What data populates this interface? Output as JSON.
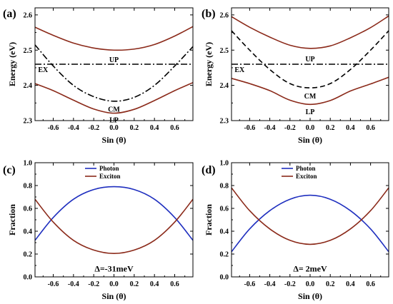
{
  "chart_data": [
    {
      "panel": "(a)",
      "type": "line",
      "xlabel": "Sin (θ)",
      "ylabel": "Energy (eV)",
      "xlim": [
        -0.78,
        0.78
      ],
      "ylim": [
        2.3,
        2.62
      ],
      "xticks": [
        -0.6,
        -0.4,
        -0.2,
        0.0,
        0.2,
        0.4,
        0.6
      ],
      "xtick_labels": [
        "-0.6",
        "-0.4",
        "-0.2",
        "0.0",
        "0.2",
        "0.4",
        "0.6"
      ],
      "yticks": [
        2.3,
        2.4,
        2.5,
        2.6
      ],
      "ytick_labels": [
        "2.3",
        "2.4",
        "2.5",
        "2.6"
      ],
      "series": [
        {
          "label": "UP",
          "color": "#8b2a1a",
          "style": "solid",
          "x": [
            -0.78,
            -0.6,
            -0.4,
            -0.2,
            0.0,
            0.2,
            0.4,
            0.6,
            0.78
          ],
          "y": [
            2.565,
            2.542,
            2.52,
            2.506,
            2.5,
            2.503,
            2.516,
            2.54,
            2.567
          ]
        },
        {
          "label": "CM",
          "color": "#000000",
          "style": "dashdot",
          "x": [
            -0.78,
            -0.6,
            -0.4,
            -0.2,
            0.0,
            0.2,
            0.4,
            0.6,
            0.78
          ],
          "y": [
            2.515,
            2.455,
            2.4,
            2.368,
            2.355,
            2.366,
            2.4,
            2.455,
            2.51
          ]
        },
        {
          "label": "EX",
          "color": "#000000",
          "style": "dashdot",
          "x": [
            -0.78,
            0.78
          ],
          "y": [
            2.46,
            2.46
          ]
        },
        {
          "label": "LP",
          "color": "#8b2a1a",
          "style": "solid",
          "x": [
            -0.78,
            -0.6,
            -0.4,
            -0.2,
            0.0,
            0.2,
            0.4,
            0.6,
            0.78
          ],
          "y": [
            2.405,
            2.385,
            2.358,
            2.333,
            2.321,
            2.332,
            2.357,
            2.385,
            2.408
          ]
        }
      ],
      "annotations": [
        {
          "text": "UP",
          "x": 0.0,
          "y": 2.473
        },
        {
          "text": "EX",
          "x": -0.7,
          "y": 2.445
        },
        {
          "text": "CM",
          "x": 0.0,
          "y": 2.332
        },
        {
          "text": "LP",
          "x": 0.0,
          "y": 2.302
        }
      ]
    },
    {
      "panel": "(b)",
      "type": "line",
      "xlabel": "Sin (θ)",
      "ylabel": "Energy (eV)",
      "xlim": [
        -0.78,
        0.78
      ],
      "ylim": [
        2.3,
        2.62
      ],
      "xticks": [
        -0.6,
        -0.4,
        -0.2,
        0.0,
        0.2,
        0.4,
        0.6
      ],
      "xtick_labels": [
        "-0.6",
        "-0.4",
        "-0.2",
        "0.0",
        "0.2",
        "0.4",
        "0.6"
      ],
      "yticks": [
        2.3,
        2.4,
        2.5,
        2.6
      ],
      "ytick_labels": [
        "2.3",
        "2.4",
        "2.5",
        "2.6"
      ],
      "series": [
        {
          "label": "UP",
          "color": "#8b2a1a",
          "style": "solid",
          "x": [
            -0.78,
            -0.6,
            -0.4,
            -0.2,
            0.0,
            0.2,
            0.4,
            0.6,
            0.78
          ],
          "y": [
            2.595,
            2.565,
            2.537,
            2.514,
            2.505,
            2.512,
            2.535,
            2.564,
            2.597
          ]
        },
        {
          "label": "CM",
          "color": "#000000",
          "style": "dashed",
          "x": [
            -0.78,
            -0.6,
            -0.4,
            -0.2,
            0.0,
            0.2,
            0.4,
            0.6,
            0.78
          ],
          "y": [
            2.555,
            2.5,
            2.445,
            2.405,
            2.393,
            2.405,
            2.445,
            2.5,
            2.555
          ]
        },
        {
          "label": "EX",
          "color": "#000000",
          "style": "dashdot",
          "x": [
            -0.78,
            0.78
          ],
          "y": [
            2.46,
            2.46
          ]
        },
        {
          "label": "LP",
          "color": "#8b2a1a",
          "style": "solid",
          "x": [
            -0.78,
            -0.6,
            -0.4,
            -0.2,
            0.0,
            0.2,
            0.4,
            0.6,
            0.78
          ],
          "y": [
            2.42,
            2.405,
            2.385,
            2.358,
            2.346,
            2.357,
            2.384,
            2.404,
            2.423
          ]
        }
      ],
      "annotations": [
        {
          "text": "UP",
          "x": 0.0,
          "y": 2.475
        },
        {
          "text": "EX",
          "x": -0.7,
          "y": 2.445
        },
        {
          "text": "CM",
          "x": 0.0,
          "y": 2.37
        },
        {
          "text": "LP",
          "x": 0.0,
          "y": 2.325
        }
      ]
    },
    {
      "panel": "(c)",
      "type": "line",
      "xlabel": "Sin (θ)",
      "ylabel": "Fraction",
      "xlim": [
        -0.78,
        0.78
      ],
      "ylim": [
        0.0,
        1.0
      ],
      "xticks": [
        -0.6,
        -0.4,
        -0.2,
        0.0,
        0.2,
        0.4,
        0.6
      ],
      "xtick_labels": [
        "-0.6",
        "-0.4",
        "-0.2",
        "0.0",
        "0.2",
        "0.4",
        "0.6"
      ],
      "yticks": [
        0.0,
        0.2,
        0.4,
        0.6,
        0.8,
        1.0
      ],
      "ytick_labels": [
        "0.0",
        "0.2",
        "0.4",
        "0.6",
        "0.8",
        "1.0"
      ],
      "legend": {
        "position": "top-left",
        "entries": [
          "Photon",
          "Exciton"
        ]
      },
      "series": [
        {
          "name": "Photon",
          "color": "#1f2fbf",
          "style": "solid",
          "x": [
            -0.78,
            -0.6,
            -0.4,
            -0.2,
            0.0,
            0.2,
            0.4,
            0.6,
            0.78
          ],
          "y": [
            0.32,
            0.52,
            0.68,
            0.765,
            0.79,
            0.765,
            0.68,
            0.52,
            0.32
          ]
        },
        {
          "name": "Exciton",
          "color": "#8b2a1a",
          "style": "solid",
          "x": [
            -0.78,
            -0.6,
            -0.4,
            -0.2,
            0.0,
            0.2,
            0.4,
            0.6,
            0.78
          ],
          "y": [
            0.68,
            0.48,
            0.32,
            0.235,
            0.205,
            0.235,
            0.32,
            0.48,
            0.68
          ]
        }
      ],
      "annotations": [
        {
          "text": "Δ=-31meV",
          "x": 0.0,
          "y": 0.07
        }
      ]
    },
    {
      "panel": "(d)",
      "type": "line",
      "xlabel": "Sin (θ)",
      "ylabel": "Fraction",
      "xlim": [
        -0.78,
        0.78
      ],
      "ylim": [
        0.0,
        1.0
      ],
      "xticks": [
        -0.6,
        -0.4,
        -0.2,
        0.0,
        0.2,
        0.4,
        0.6
      ],
      "xtick_labels": [
        "-0.6",
        "-0.4",
        "-0.2",
        "0.0",
        "0.2",
        "0.4",
        "0.6"
      ],
      "yticks": [
        0.0,
        0.2,
        0.4,
        0.6,
        0.8,
        1.0
      ],
      "ytick_labels": [
        "0.0",
        "0.2",
        "0.4",
        "0.6",
        "0.8",
        "1.0"
      ],
      "legend": {
        "position": "top-left",
        "entries": [
          "Photon",
          "Exciton"
        ]
      },
      "series": [
        {
          "name": "Photon",
          "color": "#1f2fbf",
          "style": "solid",
          "x": [
            -0.78,
            -0.6,
            -0.4,
            -0.2,
            0.0,
            0.2,
            0.4,
            0.6,
            0.78
          ],
          "y": [
            0.22,
            0.42,
            0.58,
            0.68,
            0.715,
            0.68,
            0.58,
            0.42,
            0.22
          ]
        },
        {
          "name": "Exciton",
          "color": "#8b2a1a",
          "style": "solid",
          "x": [
            -0.78,
            -0.6,
            -0.4,
            -0.2,
            0.0,
            0.2,
            0.4,
            0.6,
            0.78
          ],
          "y": [
            0.78,
            0.58,
            0.42,
            0.32,
            0.285,
            0.32,
            0.42,
            0.58,
            0.78
          ]
        }
      ],
      "annotations": [
        {
          "text": "Δ= 2meV",
          "x": 0.0,
          "y": 0.07
        }
      ]
    }
  ]
}
